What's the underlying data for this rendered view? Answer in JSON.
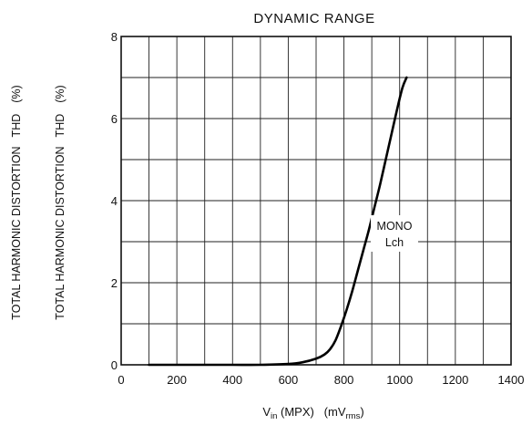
{
  "chart_data": {
    "type": "line",
    "title": "DYNAMIC RANGE",
    "ylabel_primary": "TOTAL HARMONIC DISTORTION",
    "ylabel_abbrev": "THD",
    "ylabel_unit": "(%)",
    "ylabel_secondary": "TOTAL HARMONIC DISTORTION",
    "xlabel": {
      "main": "V",
      "sub": "in",
      "mid": " (MPX)   (mV",
      "unit_sub": "rms",
      "end": ")"
    },
    "xlim": [
      0,
      1400
    ],
    "ylim": [
      0,
      8
    ],
    "x_ticks": [
      0,
      200,
      400,
      600,
      800,
      1000,
      1200,
      1400
    ],
    "y_ticks": [
      0,
      2,
      4,
      6,
      8
    ],
    "grid": true,
    "annotation": {
      "line1": "MONO",
      "line2": "Lch"
    },
    "series": [
      {
        "x": [
          100,
          200,
          300,
          400,
          500,
          600,
          650,
          700,
          730,
          750,
          770,
          790,
          810,
          830,
          850,
          870,
          890,
          910,
          930,
          950,
          970,
          990,
          1010,
          1025
        ],
        "y": [
          0,
          0,
          0,
          0,
          0,
          0.02,
          0.06,
          0.15,
          0.25,
          0.38,
          0.6,
          0.95,
          1.35,
          1.8,
          2.3,
          2.8,
          3.3,
          3.85,
          4.4,
          5.0,
          5.6,
          6.2,
          6.75,
          7.0
        ]
      }
    ]
  }
}
